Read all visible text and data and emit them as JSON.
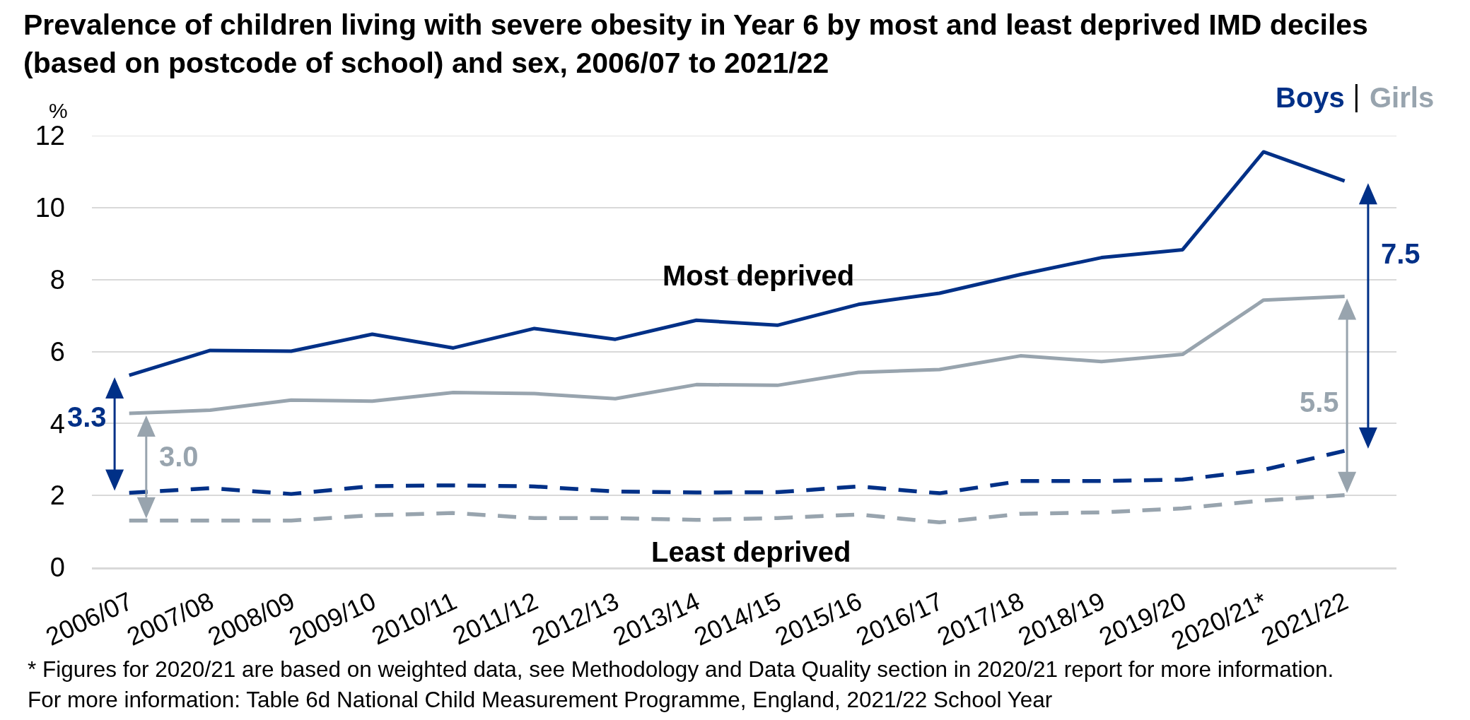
{
  "chart_data": {
    "type": "line",
    "title": "Prevalence of children living with severe obesity in Year 6 by most and least deprived IMD deciles (based on postcode of school) and sex, 2006/07 to 2021/22",
    "ylabel": "%",
    "categories": [
      "2006/07",
      "2007/08",
      "2008/09",
      "2009/10",
      "2010/11",
      "2011/12",
      "2012/13",
      "2013/14",
      "2014/15",
      "2015/16",
      "2016/17",
      "2017/18",
      "2018/19",
      "2019/20",
      "2020/21*",
      "2021/22"
    ],
    "series": [
      {
        "name": "Boys",
        "color": "#003087",
        "values": [
          5.34,
          6.03,
          6.01,
          6.48,
          6.1,
          6.64,
          6.34,
          6.87,
          6.73,
          7.31,
          7.62,
          8.14,
          8.61,
          8.83,
          11.55,
          10.74
        ]
      },
      {
        "name": "Girls",
        "color": "#98a4ae",
        "values": [
          4.28,
          4.37,
          4.65,
          4.62,
          4.86,
          4.83,
          4.69,
          5.08,
          5.06,
          5.42,
          5.5,
          5.88,
          5.72,
          5.92,
          7.43,
          7.53
        ]
      },
      {
        "color": "#003087",
        "line_style": "dashed",
        "values": [
          2.07,
          2.2,
          2.04,
          2.26,
          2.28,
          2.25,
          2.11,
          2.08,
          2.09,
          2.25,
          2.06,
          2.4,
          2.4,
          2.44,
          2.71,
          3.24
        ]
      },
      {
        "color": "#98a4ae",
        "line_style": "dashed",
        "values": [
          1.3,
          1.3,
          1.3,
          1.45,
          1.51,
          1.37,
          1.37,
          1.32,
          1.37,
          1.47,
          1.25,
          1.49,
          1.53,
          1.64,
          1.86,
          2.01
        ]
      }
    ],
    "ylim": [
      0,
      12
    ],
    "yticks": [
      0,
      2,
      4,
      6,
      8,
      10,
      12
    ],
    "grid": "y",
    "legend": "top right",
    "line_style": "solid",
    "annotations": [
      "Most deprived",
      "Least deprived",
      "3.3",
      "3.0",
      "7.5",
      "5.5",
      "* Figures for 2020/21 are based on weighted data, see Methodology and Data Quality section in 2020/21 report for more information.",
      "For more information: Table 6d National Child Measurement Programme, England, 2021/22 School Year"
    ]
  }
}
